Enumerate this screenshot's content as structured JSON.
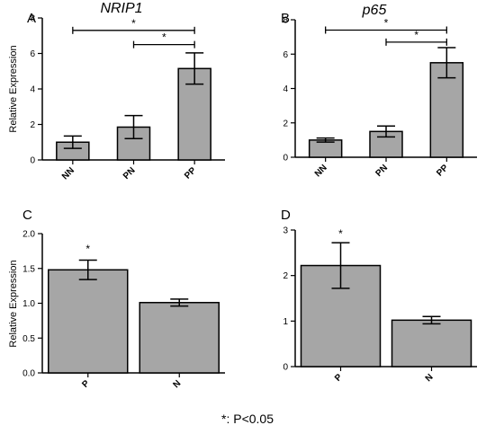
{
  "footnote": "*: P<0.05",
  "chart_data": [
    {
      "type": "bar",
      "panel": "A",
      "title": "NRIP1",
      "ylabel": "Relative Expression",
      "categories": [
        "NN",
        "PN",
        "PP"
      ],
      "values": [
        1.0,
        1.85,
        5.15
      ],
      "errors": [
        0.35,
        0.65,
        0.88
      ],
      "ylim": [
        0,
        8
      ],
      "yticks": [
        0,
        2,
        4,
        6,
        8
      ],
      "ytick_labels": [
        "0",
        "2",
        "4",
        "6",
        "8"
      ],
      "bar_color": "#a6a6a6",
      "significance": [
        {
          "from": 0,
          "to": 2,
          "y": 7.3,
          "label": "*"
        },
        {
          "from": 1,
          "to": 2,
          "y": 6.5,
          "label": "*"
        }
      ],
      "top_star": []
    },
    {
      "type": "bar",
      "panel": "B",
      "title": "p65",
      "ylabel": "",
      "categories": [
        "NN",
        "PN",
        "PP"
      ],
      "values": [
        1.0,
        1.5,
        5.5
      ],
      "errors": [
        0.12,
        0.32,
        0.88
      ],
      "ylim": [
        0,
        8
      ],
      "yticks": [
        0,
        2,
        4,
        6,
        8
      ],
      "ytick_labels": [
        "0",
        "2",
        "4",
        "6",
        "8"
      ],
      "bar_color": "#a6a6a6",
      "significance": [
        {
          "from": 0,
          "to": 2,
          "y": 7.4,
          "label": "*"
        },
        {
          "from": 1,
          "to": 2,
          "y": 6.7,
          "label": "*"
        }
      ],
      "top_star": []
    },
    {
      "type": "bar",
      "panel": "C",
      "title": "",
      "ylabel": "Relative Expression",
      "categories": [
        "P",
        "N"
      ],
      "values": [
        1.48,
        1.01
      ],
      "errors": [
        0.14,
        0.05
      ],
      "ylim": [
        0,
        2.0
      ],
      "yticks": [
        0,
        0.5,
        1.0,
        1.5,
        2.0
      ],
      "ytick_labels": [
        "0.0",
        "0.5",
        "1.0",
        "1.5",
        "2.0"
      ],
      "bar_color": "#a6a6a6",
      "significance": [],
      "top_star": [
        {
          "index": 0,
          "y": 1.78,
          "label": "*"
        }
      ]
    },
    {
      "type": "bar",
      "panel": "D",
      "title": "",
      "ylabel": "",
      "categories": [
        "P",
        "N"
      ],
      "values": [
        2.22,
        1.02
      ],
      "errors": [
        0.5,
        0.08
      ],
      "ylim": [
        0,
        3
      ],
      "yticks": [
        0,
        1,
        2,
        3
      ],
      "ytick_labels": [
        "0",
        "1",
        "2",
        "3"
      ],
      "bar_color": "#a6a6a6",
      "significance": [],
      "top_star": [
        {
          "index": 0,
          "y": 2.92,
          "label": "*"
        }
      ]
    }
  ]
}
